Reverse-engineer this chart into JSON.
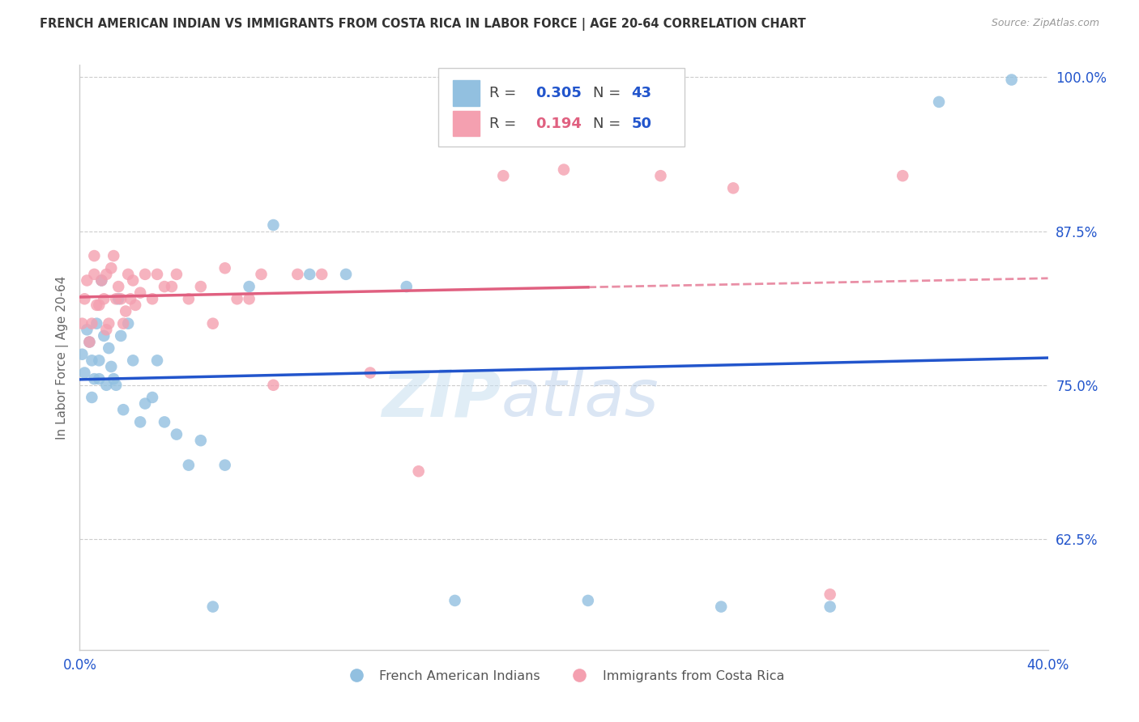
{
  "title": "FRENCH AMERICAN INDIAN VS IMMIGRANTS FROM COSTA RICA IN LABOR FORCE | AGE 20-64 CORRELATION CHART",
  "source": "Source: ZipAtlas.com",
  "ylabel": "In Labor Force | Age 20-64",
  "xlim": [
    0.0,
    0.4
  ],
  "ylim": [
    0.535,
    1.01
  ],
  "y_tick_right": [
    0.625,
    0.75,
    0.875,
    1.0
  ],
  "y_tick_right_labels": [
    "62.5%",
    "75.0%",
    "87.5%",
    "100.0%"
  ],
  "color_blue": "#92C0E0",
  "color_pink": "#F4A0B0",
  "color_blue_line": "#2255CC",
  "color_pink_line": "#E06080",
  "watermark_zip": "ZIP",
  "watermark_atlas": "atlas",
  "background_color": "#ffffff",
  "grid_color": "#cccccc",
  "blue_x": [
    0.001,
    0.002,
    0.003,
    0.004,
    0.005,
    0.005,
    0.006,
    0.007,
    0.008,
    0.008,
    0.009,
    0.01,
    0.011,
    0.012,
    0.013,
    0.014,
    0.015,
    0.016,
    0.017,
    0.018,
    0.02,
    0.022,
    0.025,
    0.027,
    0.03,
    0.032,
    0.035,
    0.04,
    0.045,
    0.05,
    0.055,
    0.06,
    0.07,
    0.08,
    0.095,
    0.11,
    0.135,
    0.155,
    0.21,
    0.265,
    0.31,
    0.355,
    0.385
  ],
  "blue_y": [
    0.775,
    0.76,
    0.795,
    0.785,
    0.74,
    0.77,
    0.755,
    0.8,
    0.77,
    0.755,
    0.835,
    0.79,
    0.75,
    0.78,
    0.765,
    0.755,
    0.75,
    0.82,
    0.79,
    0.73,
    0.8,
    0.77,
    0.72,
    0.735,
    0.74,
    0.77,
    0.72,
    0.71,
    0.685,
    0.705,
    0.57,
    0.685,
    0.83,
    0.88,
    0.84,
    0.84,
    0.83,
    0.575,
    0.575,
    0.57,
    0.57,
    0.98,
    0.998
  ],
  "pink_x": [
    0.001,
    0.002,
    0.003,
    0.004,
    0.005,
    0.006,
    0.006,
    0.007,
    0.008,
    0.009,
    0.01,
    0.011,
    0.011,
    0.012,
    0.013,
    0.014,
    0.015,
    0.016,
    0.017,
    0.018,
    0.019,
    0.02,
    0.021,
    0.022,
    0.023,
    0.025,
    0.027,
    0.03,
    0.032,
    0.035,
    0.038,
    0.04,
    0.045,
    0.05,
    0.055,
    0.06,
    0.065,
    0.07,
    0.075,
    0.08,
    0.09,
    0.1,
    0.12,
    0.14,
    0.175,
    0.2,
    0.24,
    0.27,
    0.31,
    0.34
  ],
  "pink_y": [
    0.8,
    0.82,
    0.835,
    0.785,
    0.8,
    0.84,
    0.855,
    0.815,
    0.815,
    0.835,
    0.82,
    0.795,
    0.84,
    0.8,
    0.845,
    0.855,
    0.82,
    0.83,
    0.82,
    0.8,
    0.81,
    0.84,
    0.82,
    0.835,
    0.815,
    0.825,
    0.84,
    0.82,
    0.84,
    0.83,
    0.83,
    0.84,
    0.82,
    0.83,
    0.8,
    0.845,
    0.82,
    0.82,
    0.84,
    0.75,
    0.84,
    0.84,
    0.76,
    0.68,
    0.92,
    0.925,
    0.92,
    0.91,
    0.58,
    0.92
  ],
  "blue_trend_x0": 0.0,
  "blue_trend_x1": 0.4,
  "pink_trend_solid_x0": 0.0,
  "pink_trend_solid_x1": 0.21,
  "pink_trend_dash_x0": 0.21,
  "pink_trend_dash_x1": 0.4
}
